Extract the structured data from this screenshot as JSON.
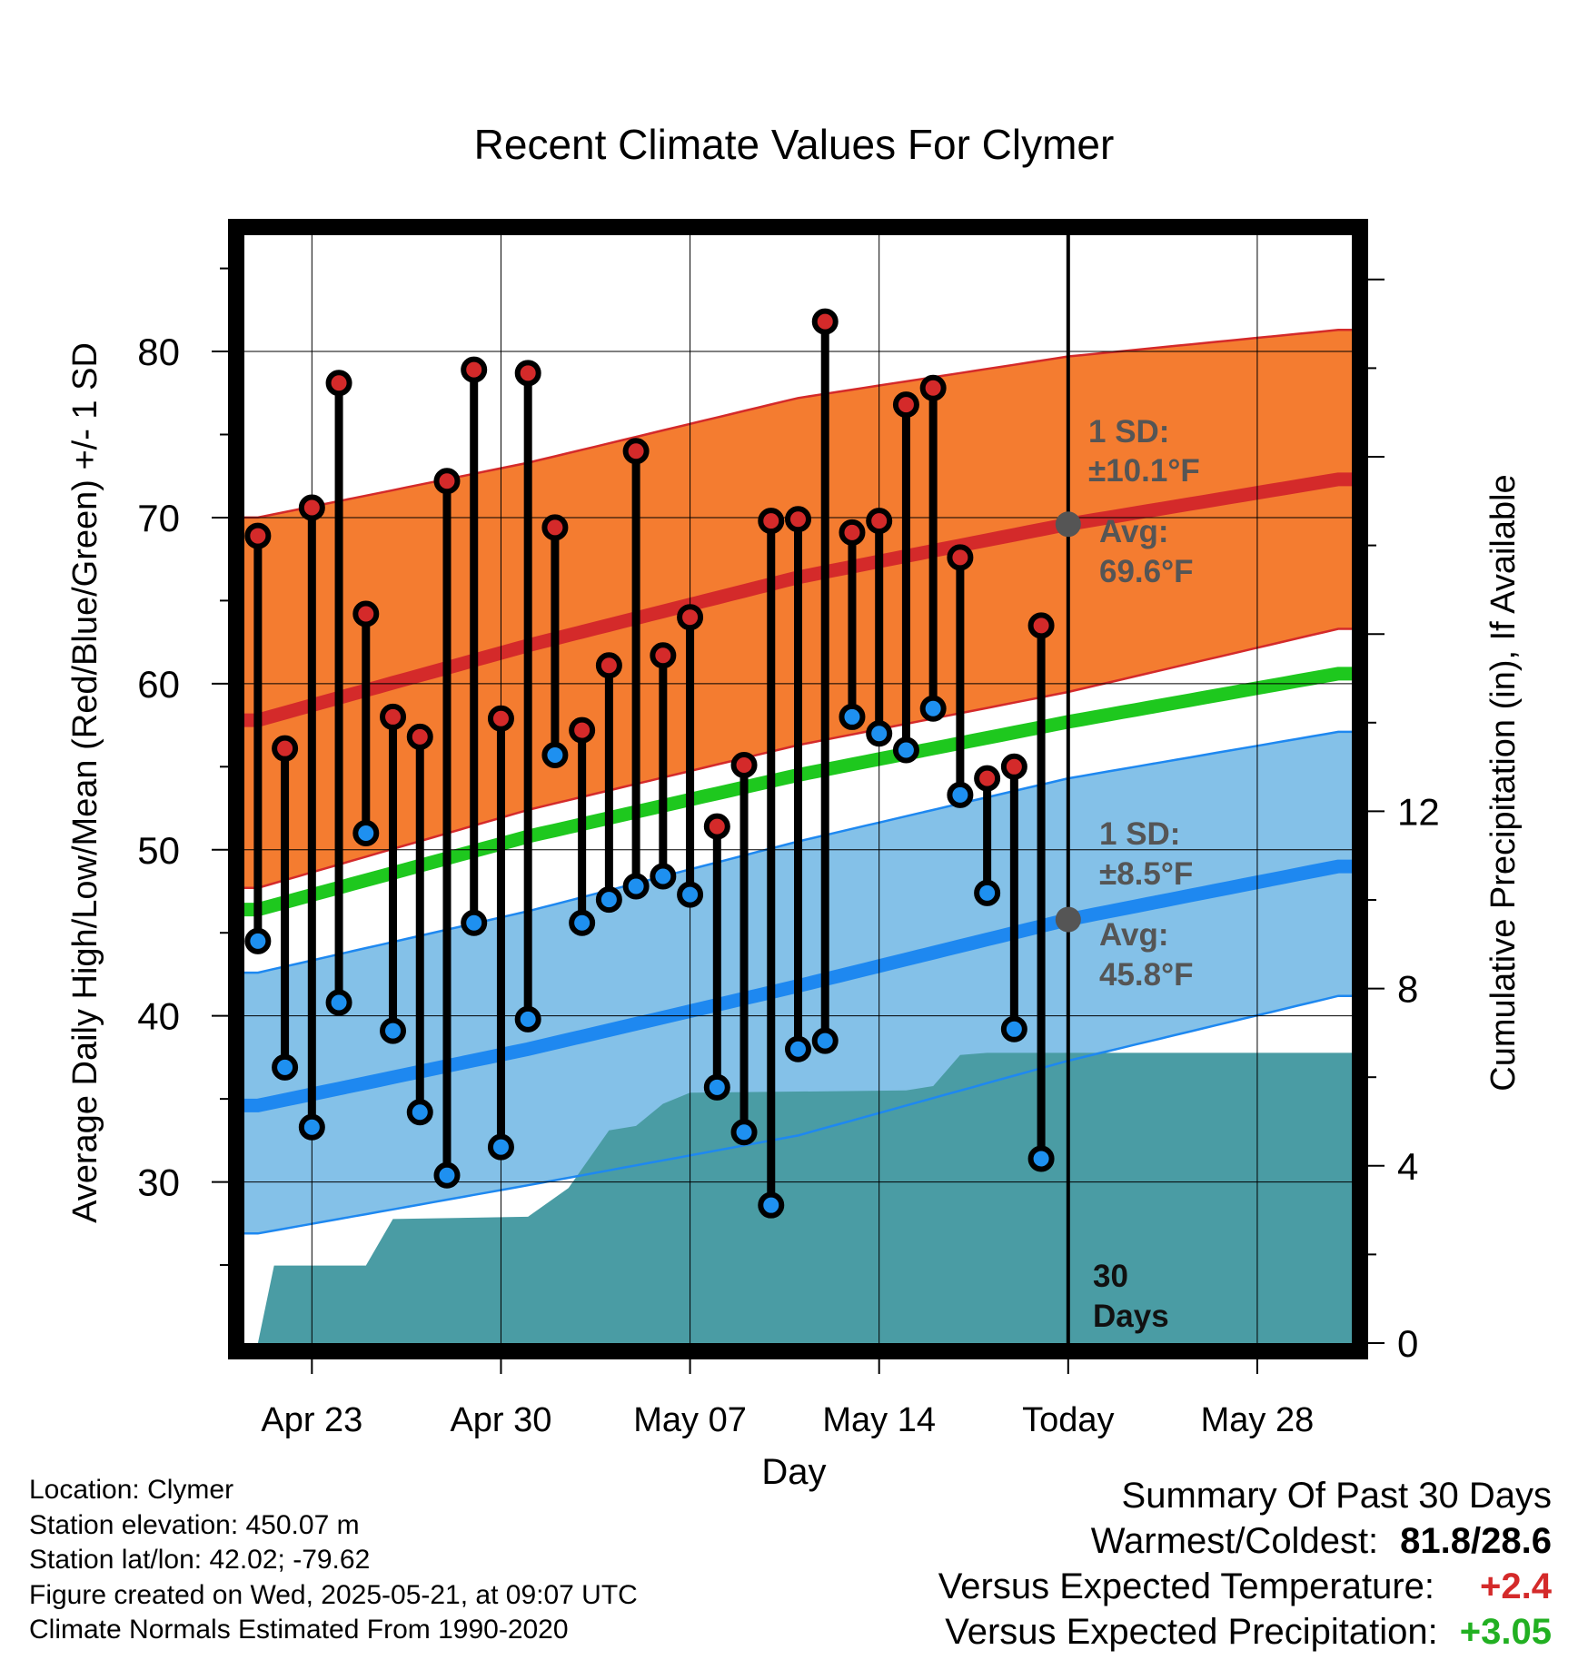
{
  "chart_data": {
    "type": "line",
    "title": "Recent Climate Values For Clymer",
    "xlabel": "Day",
    "ylabel_left": "Average Daily High/Low/Mean (Red/Blue/Green) +/- 1 SD",
    "ylabel_right": "Cumulative Precipitation (in), If Available",
    "x_tick_labels": [
      "Apr 23",
      "Apr 30",
      "May 07",
      "May 14",
      "Today",
      "May 28"
    ],
    "x_tick_days": [
      2,
      9,
      16,
      23,
      30,
      37
    ],
    "x_range_days": [
      -0.5,
      40.5
    ],
    "ylim_left": [
      20.3,
      87
    ],
    "y_left_ticks": [
      30,
      40,
      50,
      60,
      70,
      80
    ],
    "ylim_right": [
      0,
      25
    ],
    "y_right_ticks": [
      0,
      4,
      8,
      12
    ],
    "today_day": 30,
    "grid": true,
    "normals": {
      "high_avg": [
        [
          0,
          57.8
        ],
        [
          10,
          62.3
        ],
        [
          20,
          66.4
        ],
        [
          30,
          69.6
        ],
        [
          40,
          72.3
        ]
      ],
      "high_sd_upper": [
        [
          0,
          70.0
        ],
        [
          10,
          73.3
        ],
        [
          20,
          77.2
        ],
        [
          30,
          79.7
        ],
        [
          40,
          81.3
        ]
      ],
      "high_sd_lower": [
        [
          0,
          47.7
        ],
        [
          10,
          52.4
        ],
        [
          20,
          56.3
        ],
        [
          30,
          59.5
        ],
        [
          40,
          63.3
        ]
      ],
      "mean_avg": [
        [
          0,
          46.4
        ],
        [
          10,
          50.8
        ],
        [
          20,
          54.5
        ],
        [
          30,
          57.7
        ],
        [
          40,
          60.6
        ]
      ],
      "low_avg": [
        [
          0,
          34.6
        ],
        [
          10,
          38.0
        ],
        [
          20,
          41.8
        ],
        [
          30,
          45.8
        ],
        [
          40,
          49.0
        ]
      ],
      "low_sd_upper": [
        [
          0,
          42.6
        ],
        [
          10,
          46.3
        ],
        [
          20,
          50.5
        ],
        [
          30,
          54.3
        ],
        [
          40,
          57.1
        ]
      ],
      "low_sd_lower": [
        [
          0,
          26.9
        ],
        [
          10,
          29.8
        ],
        [
          20,
          32.8
        ],
        [
          30,
          37.3
        ],
        [
          40,
          41.2
        ]
      ]
    },
    "daily_highs": [
      68.9,
      56.1,
      70.6,
      78.1,
      64.2,
      58.0,
      56.8,
      72.2,
      78.9,
      57.9,
      78.7,
      69.4,
      57.2,
      61.1,
      74.0,
      61.7,
      64.0,
      51.4,
      55.1,
      69.8,
      69.9,
      81.8,
      69.1,
      69.8,
      76.8,
      77.8,
      67.6,
      54.3,
      55.0,
      63.5
    ],
    "daily_lows": [
      44.5,
      36.9,
      33.3,
      40.8,
      51.0,
      39.1,
      34.2,
      30.4,
      45.6,
      32.1,
      39.8,
      55.7,
      45.6,
      47.0,
      47.8,
      48.4,
      47.3,
      35.7,
      33.0,
      28.6,
      38.0,
      38.5,
      58.0,
      57.0,
      56.0,
      58.5,
      53.3,
      47.4,
      39.2,
      31.4
    ],
    "precip_cumulative": [
      [
        0,
        0.0
      ],
      [
        0.6,
        1.75
      ],
      [
        4,
        1.75
      ],
      [
        5,
        2.8
      ],
      [
        10,
        2.85
      ],
      [
        11.5,
        3.5
      ],
      [
        13,
        4.8
      ],
      [
        14,
        4.9
      ],
      [
        15,
        5.4
      ],
      [
        16,
        5.65
      ],
      [
        24,
        5.7
      ],
      [
        25,
        5.8
      ],
      [
        26,
        6.5
      ],
      [
        27,
        6.55
      ],
      [
        40.5,
        6.55
      ]
    ],
    "annotations": {
      "high_sd_title": "1 SD:",
      "high_sd_value": "±10.1°F",
      "high_avg_title": "Avg:",
      "high_avg_value": "69.6°F",
      "low_sd_title": "1 SD:",
      "low_sd_value": "±8.5°F",
      "low_avg_title": "Avg:",
      "low_avg_value": "45.8°F",
      "days_number": "30",
      "days_word": "Days"
    },
    "colors": {
      "high_band": "#f47c30",
      "high_line": "#d42a2a",
      "low_band": "#84c1e8",
      "low_line": "#1e88f0",
      "mean_line": "#1ec81e",
      "precip_fill": "#4a9ca4",
      "high_dot": "#d42a2a",
      "low_dot": "#1e90f0",
      "today_marker": "#555555",
      "annotation_text": "#555555"
    }
  },
  "info": {
    "location": "Location: Clymer",
    "elevation": "Station elevation: 450.07 m",
    "latlon": "Station lat/lon: 42.02; -79.62",
    "created": "Figure created on Wed, 2025-05-21, at 09:07 UTC",
    "normals": "Climate Normals Estimated From 1990-2020"
  },
  "summary": {
    "title": "Summary Of Past 30 Days",
    "warm_cold_label": "Warmest/Coldest:",
    "warm_cold_value": "81.8/28.6",
    "temp_label": "Versus Expected Temperature:",
    "temp_value": "+2.4",
    "temp_color": "#d42a2a",
    "precip_label": "Versus Expected Precipitation:",
    "precip_value": "+3.05",
    "precip_color": "#22b022"
  }
}
